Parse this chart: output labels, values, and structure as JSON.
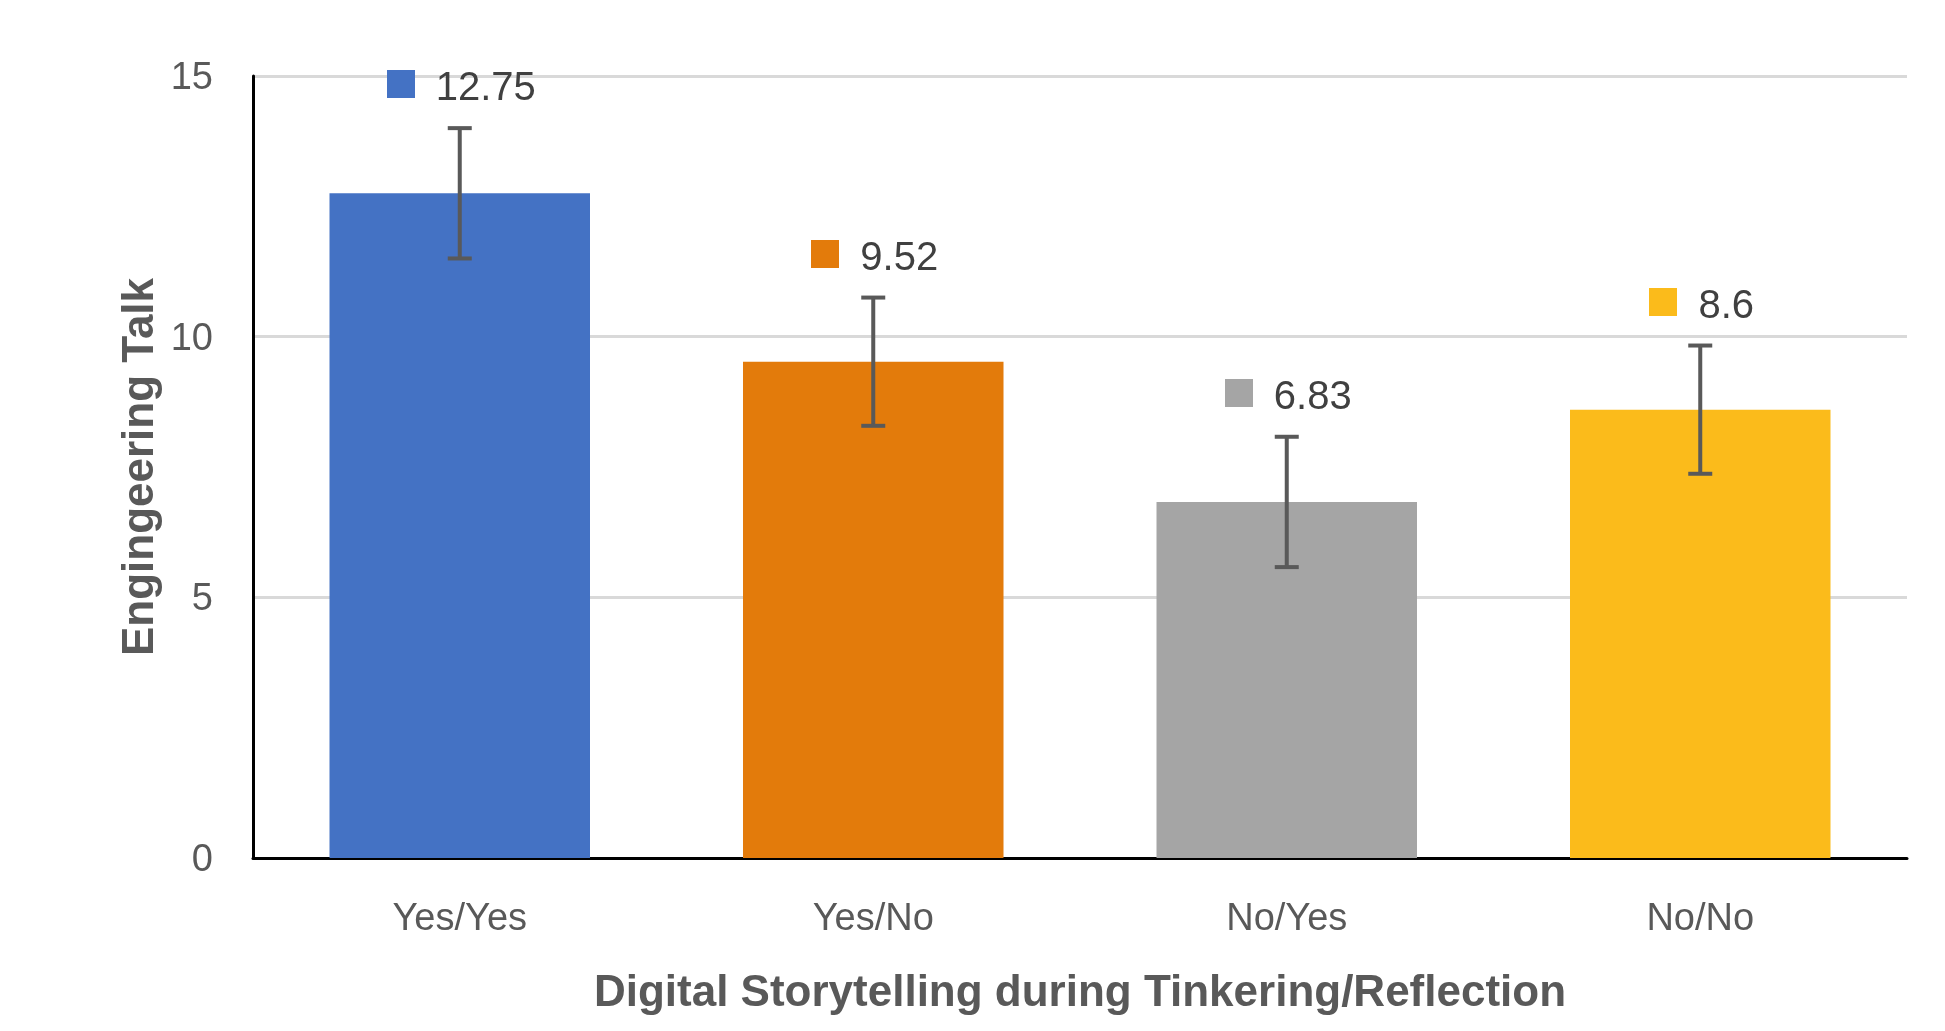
{
  "chart_data": {
    "type": "bar",
    "xlabel": "Digital Storytelling during Tinkering/Reflection",
    "ylabel": "Engingeering Talk",
    "categories": [
      "Yes/Yes",
      "Yes/No",
      "No/Yes",
      "No/No"
    ],
    "values": [
      12.75,
      9.52,
      6.83,
      8.6
    ],
    "colors": [
      "#4472c4",
      "#e37b0b",
      "#a5a5a5",
      "#fbbb1b"
    ],
    "errors": [
      1.25,
      1.23,
      1.25,
      1.23
    ],
    "data_labels": true,
    "ylim": [
      0,
      15
    ],
    "yticks": [
      0,
      5,
      10,
      15
    ],
    "grid": "y"
  }
}
